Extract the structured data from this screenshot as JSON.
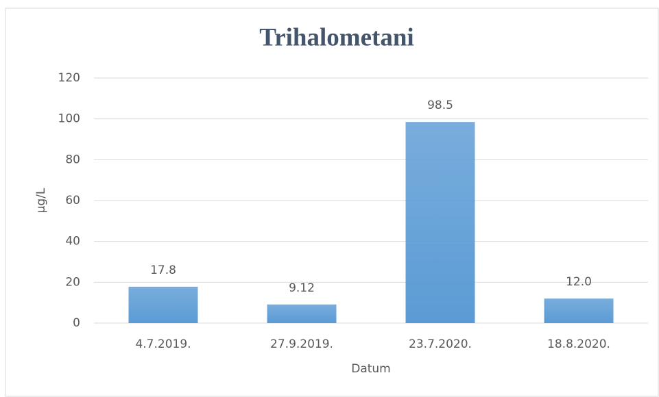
{
  "chart_data": {
    "type": "bar",
    "title": "Trihalometani",
    "x_label": "Datum",
    "y_label": "µg/L",
    "categories": [
      "4.7.2019.",
      "27.9.2019.",
      "23.7.2020.",
      "18.8.2020."
    ],
    "values": [
      17.8,
      9.12,
      98.5,
      12.0
    ],
    "value_labels": [
      "17.8",
      "9.12",
      "98.5",
      "12.0"
    ],
    "color": "#5b9bd5",
    "ylim": [
      0,
      120
    ],
    "yticks": [
      0,
      20,
      40,
      60,
      80,
      100,
      120
    ],
    "grid": true
  }
}
